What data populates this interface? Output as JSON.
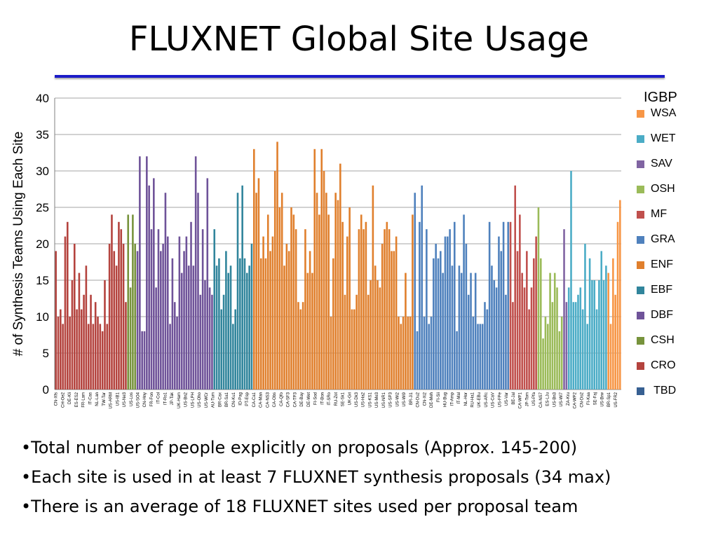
{
  "slide": {
    "title": "FLUXNET Global Site Usage",
    "bullets": [
      "•Total number of people explicitly on proposals (Approx. 145-200)",
      "•Each site is used in at least 7 FLUXNET synthesis proposals (34 max)",
      "•There is an average of 18 FLUXNET sites used per proposal team"
    ]
  },
  "chart_data": {
    "type": "bar",
    "ylabel": "# of Synthesis Teams Using Each Site",
    "ylim": [
      0,
      40
    ],
    "yticks": [
      0,
      5,
      10,
      15,
      20,
      25,
      30,
      35,
      40
    ],
    "grid": true,
    "legend_position": "right",
    "legend_title": "IGBP",
    "legend": [
      {
        "name": "WSA",
        "color": "#f79646"
      },
      {
        "name": "WET",
        "color": "#4bacc6"
      },
      {
        "name": "SAV",
        "color": "#8064a2"
      },
      {
        "name": "OSH",
        "color": "#9bbb59"
      },
      {
        "name": "MF",
        "color": "#c0504d"
      },
      {
        "name": "GRA",
        "color": "#4f81bd"
      },
      {
        "name": "ENF",
        "color": "#e07f2c"
      },
      {
        "name": "EBF",
        "color": "#31859c"
      },
      {
        "name": "DBF",
        "color": "#6f5399"
      },
      {
        "name": "CSH",
        "color": "#77933c"
      },
      {
        "name": "CRO",
        "color": "#b4433e"
      },
      {
        "name": " TBD",
        "color": "#376092"
      }
    ],
    "x_labels": [
      "CN-Xfs",
      "CH-Oe2",
      "DE-Kli",
      "ES-ES2",
      "FR-Lam",
      "IT-Cas",
      "NL-Lan",
      "TW-Tar",
      "US-ARM",
      "US-IB1",
      "US-Ne3",
      "US-Los",
      "US-SO4",
      "CN-Hny",
      "FR-Fon",
      "IT-Col",
      "IT-Ro1",
      "JP-Tak",
      "UK-Ham",
      "US-Bn2",
      "US-LPH",
      "US-Oho",
      "US-WCr",
      "AU-Tum",
      "BR-Cax",
      "BR-Sa1",
      "CN-Ku1",
      "ID-Pag",
      "PT-Esp",
      "CA-Ca1",
      "CA-Man",
      "CA-NS3",
      "CA-Obs",
      "CA-Qfo",
      "CA-SF3",
      "CA-TP3",
      "DE-Bay",
      "DE-Wet",
      "FI-Sod",
      "IT-Bon",
      "IT-SRo",
      "RU-Zot",
      "SE-Sk1",
      "UK-Gri",
      "US-Dk3",
      "US-Ha2",
      "US-KS1",
      "US-Me3",
      "US-NR1",
      "US-SP3",
      "US-Wi2",
      "US-Wi9",
      "BR-Ji1",
      "CN-Du2",
      "CN-Xi2",
      "DE-Meh",
      "FI-Sii",
      "HU-Bug",
      "IT-Amp",
      "IT-Mal",
      "NL-Hor",
      "RU-Ha1",
      "UK-EBu",
      "US-ARc",
      "US-CaV",
      "US-FPe",
      "US-Var",
      "BE-Jal",
      "CA-WP1",
      "JP-Tom",
      "US-Pfa",
      "CA-NS7",
      "ES-LJu",
      "US-Bn3",
      "US-Wi7",
      "ZA-Kru",
      "CA-WP2",
      "CN-Do2",
      "FI-Kaa",
      "SE-Faj",
      "US-Brw",
      "BR-Sp1",
      "US-FR2"
    ],
    "series": [
      {
        "name": "CRO",
        "color": "#b4433e",
        "values": [
          19,
          10,
          11,
          9,
          21,
          23,
          10,
          15,
          20,
          11,
          16,
          11,
          13,
          17,
          9,
          13,
          9,
          12,
          10,
          9,
          8,
          15,
          9,
          20,
          24,
          19,
          17,
          23,
          22,
          20,
          12
        ]
      },
      {
        "name": "CSH",
        "color": "#77933c",
        "values": [
          24,
          14,
          24,
          20
        ]
      },
      {
        "name": "DBF",
        "color": "#6f5399",
        "values": [
          19,
          32,
          8,
          8,
          32,
          28,
          22,
          29,
          14,
          22,
          19,
          20,
          27,
          21,
          9,
          18,
          12,
          10,
          21,
          16,
          19,
          21,
          17,
          23,
          17,
          32,
          27,
          13,
          22,
          15,
          29,
          14,
          13
        ]
      },
      {
        "name": "EBF",
        "color": "#31859c",
        "values": [
          22,
          17,
          18,
          11,
          13,
          19,
          16,
          17,
          9,
          11,
          27,
          18,
          28,
          18,
          16,
          17,
          20
        ]
      },
      {
        "name": "ENF",
        "color": "#e07f2c",
        "values": [
          33,
          27,
          29,
          18,
          21,
          18,
          24,
          19,
          21,
          30,
          34,
          25,
          27,
          17,
          20,
          19,
          25,
          24,
          22,
          12,
          11,
          12,
          22,
          16,
          19,
          16,
          33,
          27,
          24,
          33,
          30,
          27,
          24,
          10,
          18,
          27,
          26,
          31,
          23,
          13,
          21,
          25,
          11,
          11,
          13,
          22,
          24,
          22,
          23,
          13,
          15,
          28,
          17,
          15,
          14,
          20,
          22,
          23,
          22,
          19,
          19,
          21,
          10,
          9,
          10,
          16,
          10,
          10,
          24
        ]
      },
      {
        "name": "GRA",
        "color": "#4f81bd",
        "values": [
          27,
          8,
          23,
          28,
          10,
          22,
          9,
          10,
          18,
          20,
          18,
          19,
          16,
          21,
          21,
          22,
          17,
          23,
          8,
          17,
          16,
          24,
          20,
          13,
          16,
          10,
          16,
          9,
          9,
          9,
          12,
          11,
          23,
          17,
          15,
          14,
          21,
          19,
          23,
          13,
          23
        ]
      },
      {
        "name": "MF",
        "color": "#c0504d",
        "values": [
          23,
          12,
          28,
          19,
          24,
          16,
          14,
          19,
          11,
          14,
          18,
          21
        ]
      },
      {
        "name": "OSH",
        "color": "#9bbb59",
        "values": [
          25,
          18,
          7,
          10,
          9,
          16,
          12,
          16,
          14,
          8,
          10
        ]
      },
      {
        "name": "SAV",
        "color": "#8064a2",
        "values": [
          22,
          12
        ]
      },
      {
        "name": "WET",
        "color": "#4bacc6",
        "values": [
          14,
          30,
          12,
          12,
          13,
          14,
          11,
          20,
          9,
          18,
          15,
          15,
          11,
          15,
          19,
          15,
          17
        ]
      },
      {
        "name": "WSA",
        "color": "#f79646",
        "values": [
          16,
          9,
          18,
          13,
          23,
          26
        ]
      }
    ]
  }
}
